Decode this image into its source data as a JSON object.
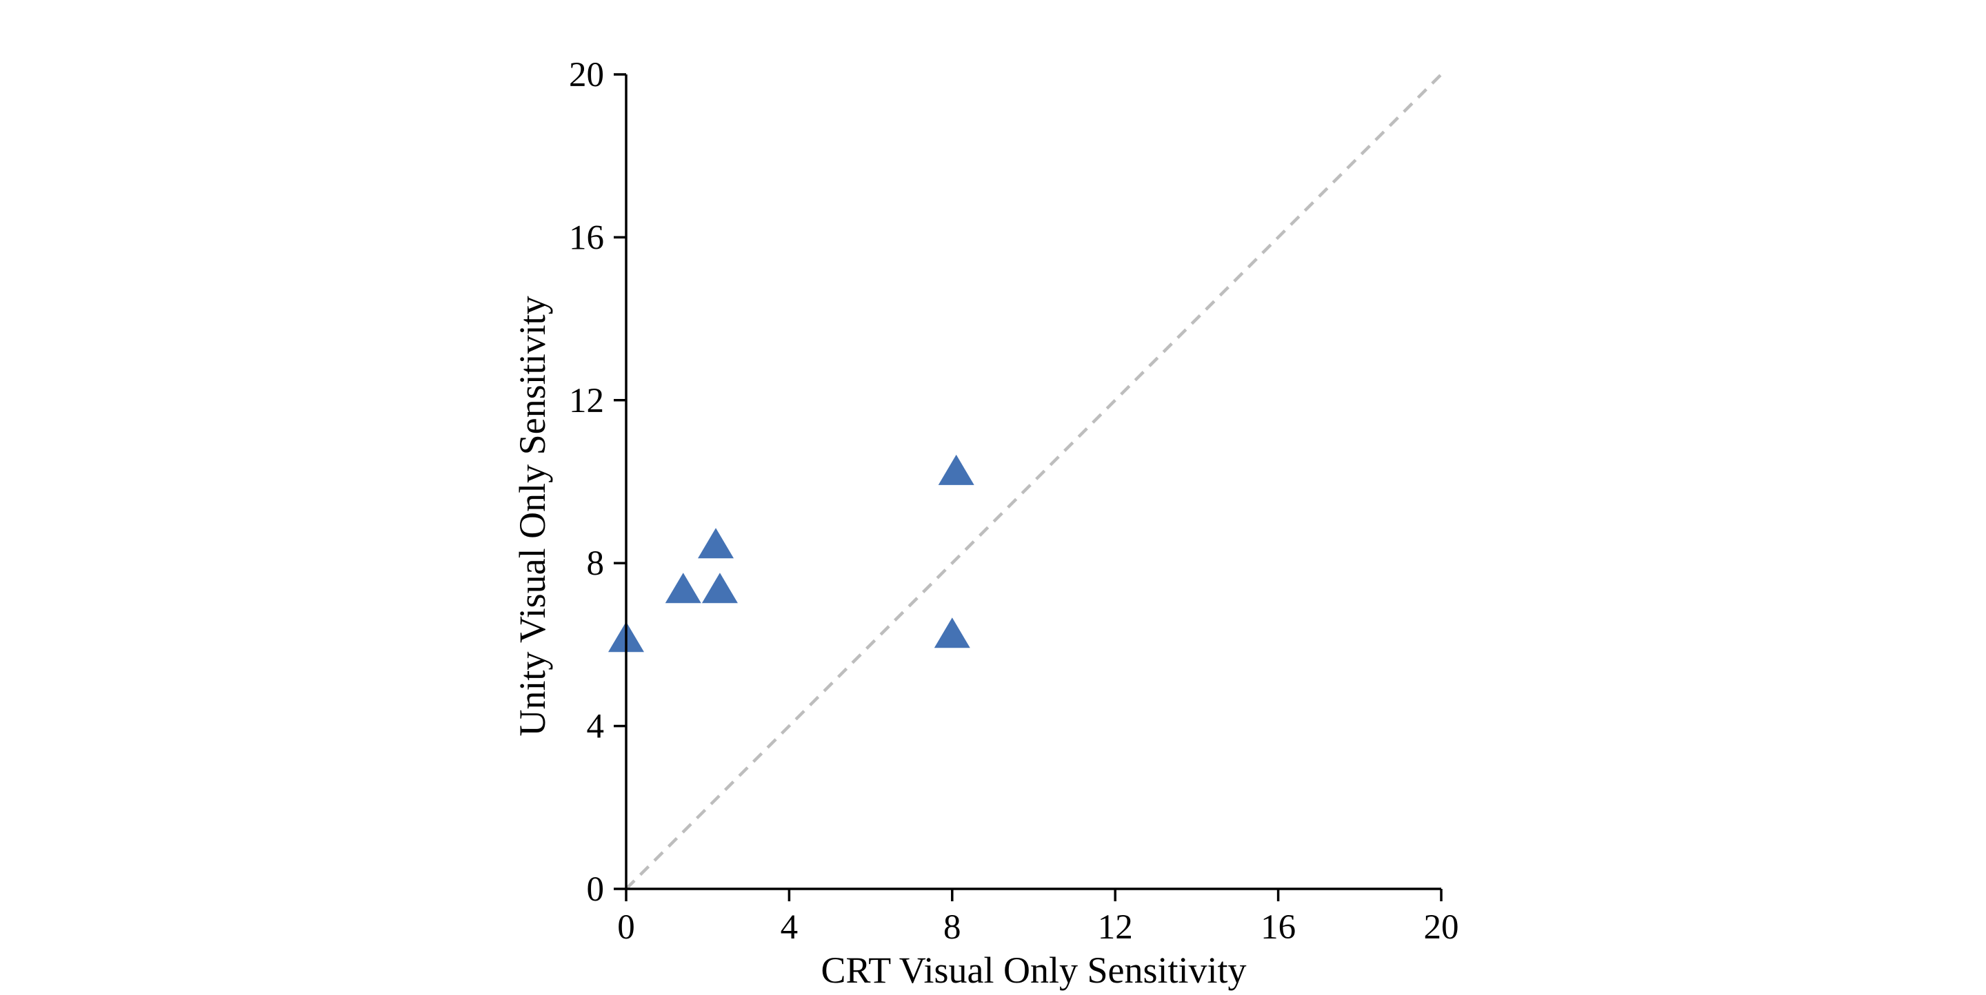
{
  "chart_data": {
    "type": "scatter",
    "xlabel": "CRT Visual Only Sensitivity",
    "ylabel": "Unity Visual Only Sensitivity",
    "xlim": [
      0,
      20
    ],
    "ylim": [
      0,
      20
    ],
    "xticks": [
      "0",
      "4",
      "8",
      "12",
      "16",
      "20"
    ],
    "yticks": [
      "0",
      "4",
      "8",
      "12",
      "16",
      "20"
    ],
    "grid": false,
    "reference_line": {
      "style": "dashed",
      "from": [
        0,
        0
      ],
      "to": [
        20,
        20
      ],
      "color": "#bdbdbd"
    },
    "marker": "triangle",
    "series": [
      {
        "color": "#4472b4",
        "points": [
          {
            "x": 0.0,
            "y": 6.1
          },
          {
            "x": 1.4,
            "y": 7.3
          },
          {
            "x": 2.2,
            "y": 8.4
          },
          {
            "x": 2.3,
            "y": 7.3
          },
          {
            "x": 8.1,
            "y": 10.2
          },
          {
            "x": 8.0,
            "y": 6.2
          }
        ]
      }
    ]
  }
}
